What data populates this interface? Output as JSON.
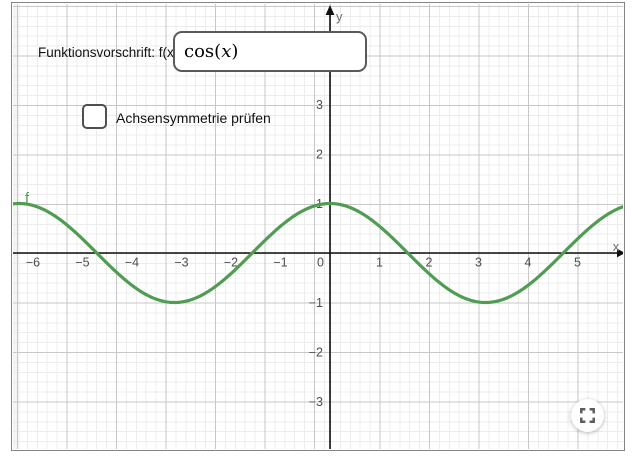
{
  "function_input": {
    "label": "Funktionsvorschrift: f(x)=",
    "value": "cos(x)",
    "value_parts": {
      "name": "cos",
      "open": "(",
      "variable": "x",
      "close": ")"
    }
  },
  "symmetry_checkbox": {
    "label": "Achsensymmetrie prüfen",
    "checked": false
  },
  "graph": {
    "curve_label": "f"
  },
  "chart_data": {
    "type": "line",
    "title": "",
    "series": [
      {
        "name": "f",
        "expression": "cos(x)",
        "fn": "cos",
        "color": "#4f9c52"
      }
    ],
    "x_ticks": [
      -6,
      -5,
      -4,
      -3,
      -2,
      -1,
      0,
      1,
      2,
      3,
      4,
      5
    ],
    "y_ticks": [
      3,
      2,
      1,
      -1,
      -2,
      -3
    ],
    "x_range": [
      -6.4,
      5.97
    ],
    "y_range": [
      -3.97,
      5.02
    ],
    "xlabel": "x",
    "ylabel": "y",
    "grid": true,
    "minor_grid": true,
    "legend": "none"
  },
  "colors": {
    "curve": "#4f9c52",
    "axis": "#111111",
    "grid_major": "#c7c7c7",
    "grid_minor": "#ececec",
    "frame_border": "#848484"
  }
}
